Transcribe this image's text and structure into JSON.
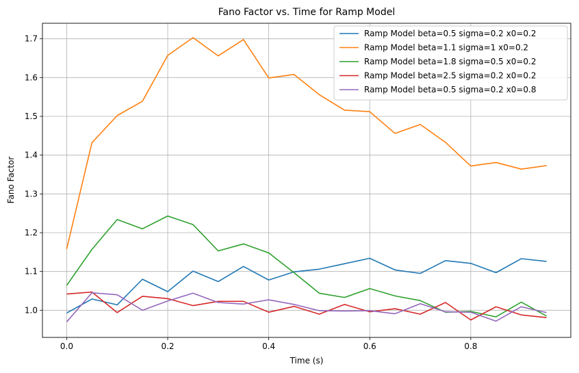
{
  "chart_data": {
    "type": "line",
    "title": "Fano Factor vs. Time for Ramp Model",
    "xlabel": "Time (s)",
    "ylabel": "Fano Factor",
    "xlim": [
      -0.048,
      0.998
    ],
    "ylim": [
      0.93,
      1.74
    ],
    "xticks": [
      0.0,
      0.2,
      0.4,
      0.6,
      0.8
    ],
    "xtick_labels": [
      "0.0",
      "0.2",
      "0.4",
      "0.6",
      "0.8"
    ],
    "yticks": [
      1.0,
      1.1,
      1.2,
      1.3,
      1.4,
      1.5,
      1.6,
      1.7
    ],
    "ytick_labels": [
      "1.0",
      "1.1",
      "1.2",
      "1.3",
      "1.4",
      "1.5",
      "1.6",
      "1.7"
    ],
    "grid": true,
    "legend_position": "upper right",
    "x": [
      0.0,
      0.05,
      0.1,
      0.15,
      0.2,
      0.25,
      0.3,
      0.35,
      0.4,
      0.45,
      0.5,
      0.55,
      0.6,
      0.65,
      0.7,
      0.75,
      0.8,
      0.85,
      0.9,
      0.95
    ],
    "series": [
      {
        "name": "Ramp Model beta=0.5 sigma=0.2 x0=0.2",
        "color": "#1f77b4",
        "values": [
          0.993,
          1.029,
          1.014,
          1.08,
          1.048,
          1.101,
          1.074,
          1.113,
          1.078,
          1.099,
          1.106,
          1.12,
          1.134,
          1.104,
          1.095,
          1.128,
          1.121,
          1.097,
          1.133,
          1.126
        ]
      },
      {
        "name": "Ramp Model beta=1.1 sigma=1 x0=0.2",
        "color": "#ff7f0e",
        "values": [
          1.158,
          1.432,
          1.502,
          1.539,
          1.657,
          1.703,
          1.656,
          1.698,
          1.599,
          1.608,
          1.556,
          1.516,
          1.512,
          1.456,
          1.479,
          1.433,
          1.372,
          1.381,
          1.364,
          1.373
        ]
      },
      {
        "name": "Ramp Model beta=1.8 sigma=0.5 x0=0.2",
        "color": "#2ca02c",
        "values": [
          1.064,
          1.157,
          1.234,
          1.21,
          1.243,
          1.221,
          1.153,
          1.171,
          1.148,
          1.097,
          1.044,
          1.033,
          1.056,
          1.037,
          1.025,
          0.995,
          0.997,
          0.983,
          1.021,
          0.985
        ]
      },
      {
        "name": "Ramp Model beta=2.5 sigma=0.2 x0=0.2",
        "color": "#d62728",
        "values": [
          1.042,
          1.047,
          0.994,
          1.036,
          1.03,
          1.012,
          1.023,
          1.023,
          0.995,
          1.01,
          0.99,
          1.015,
          0.996,
          1.004,
          0.99,
          1.02,
          0.975,
          1.009,
          0.988,
          0.981
        ]
      },
      {
        "name": "Ramp Model beta=0.5 sigma=0.2 x0=0.8",
        "color": "#9467bd",
        "values": [
          0.97,
          1.045,
          1.04,
          1.0,
          1.024,
          1.044,
          1.02,
          1.016,
          1.027,
          1.015,
          0.999,
          0.998,
          0.999,
          0.991,
          1.017,
          0.996,
          0.995,
          0.972,
          1.009,
          0.994
        ]
      }
    ]
  }
}
